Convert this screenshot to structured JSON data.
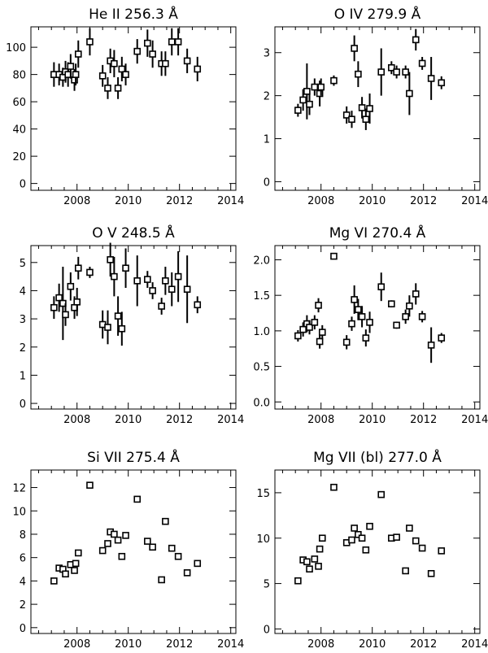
{
  "chart_data": [
    {
      "type": "scatter",
      "title": "He II 256.3 Å",
      "xlabel": "",
      "ylabel": "",
      "xlim": [
        2006.2,
        2014.2
      ],
      "ylim": [
        -5,
        115
      ],
      "xticks": [
        2008,
        2010,
        2012,
        2014
      ],
      "yticks": [
        0,
        20,
        40,
        60,
        80,
        100
      ],
      "points": [
        {
          "x": 2007.1,
          "y": 80,
          "err": 9
        },
        {
          "x": 2007.3,
          "y": 80,
          "err": 8
        },
        {
          "x": 2007.45,
          "y": 78,
          "err": 7
        },
        {
          "x": 2007.55,
          "y": 82,
          "err": 8
        },
        {
          "x": 2007.65,
          "y": 80,
          "err": 9
        },
        {
          "x": 2007.75,
          "y": 86,
          "err": 9
        },
        {
          "x": 2007.9,
          "y": 76,
          "err": 8
        },
        {
          "x": 2007.95,
          "y": 80,
          "err": 8
        },
        {
          "x": 2008.05,
          "y": 95,
          "err": 10
        },
        {
          "x": 2008.5,
          "y": 104,
          "err": 10
        },
        {
          "x": 2009.0,
          "y": 79,
          "err": 8
        },
        {
          "x": 2009.2,
          "y": 70,
          "err": 8
        },
        {
          "x": 2009.3,
          "y": 90,
          "err": 9
        },
        {
          "x": 2009.45,
          "y": 88,
          "err": 10
        },
        {
          "x": 2009.6,
          "y": 70,
          "err": 8
        },
        {
          "x": 2009.75,
          "y": 84,
          "err": 9
        },
        {
          "x": 2009.9,
          "y": 80,
          "err": 8
        },
        {
          "x": 2010.35,
          "y": 97,
          "err": 9
        },
        {
          "x": 2010.75,
          "y": 103,
          "err": 10
        },
        {
          "x": 2010.95,
          "y": 95,
          "err": 10
        },
        {
          "x": 2011.3,
          "y": 88,
          "err": 9
        },
        {
          "x": 2011.45,
          "y": 88,
          "err": 9
        },
        {
          "x": 2011.7,
          "y": 104,
          "err": 10
        },
        {
          "x": 2011.95,
          "y": 104,
          "err": 10
        },
        {
          "x": 2012.3,
          "y": 90,
          "err": 9
        },
        {
          "x": 2012.7,
          "y": 84,
          "err": 9
        }
      ]
    },
    {
      "type": "scatter",
      "title": "O IV 279.9 Å",
      "xlabel": "",
      "ylabel": "",
      "xlim": [
        2006.2,
        2014.2
      ],
      "ylim": [
        -0.2,
        3.6
      ],
      "xticks": [
        2008,
        2010,
        2012,
        2014
      ],
      "yticks": [
        0,
        1,
        2,
        3
      ],
      "points": [
        {
          "x": 2007.1,
          "y": 1.66,
          "err": 0.15
        },
        {
          "x": 2007.3,
          "y": 1.9,
          "err": 0.25
        },
        {
          "x": 2007.45,
          "y": 2.1,
          "err": 0.65
        },
        {
          "x": 2007.55,
          "y": 1.8,
          "err": 0.25
        },
        {
          "x": 2007.75,
          "y": 2.2,
          "err": 0.2
        },
        {
          "x": 2007.95,
          "y": 2.05,
          "err": 0.3
        },
        {
          "x": 2008.0,
          "y": 2.2,
          "err": 0.2
        },
        {
          "x": 2008.5,
          "y": 2.35,
          "err": 0.12
        },
        {
          "x": 2009.0,
          "y": 1.55,
          "err": 0.2
        },
        {
          "x": 2009.2,
          "y": 1.45,
          "err": 0.2
        },
        {
          "x": 2009.3,
          "y": 3.1,
          "err": 0.3
        },
        {
          "x": 2009.45,
          "y": 2.5,
          "err": 0.3
        },
        {
          "x": 2009.6,
          "y": 1.72,
          "err": 0.25
        },
        {
          "x": 2009.75,
          "y": 1.45,
          "err": 0.25
        },
        {
          "x": 2009.9,
          "y": 1.7,
          "err": 0.35
        },
        {
          "x": 2010.35,
          "y": 2.55,
          "err": 0.55
        },
        {
          "x": 2010.75,
          "y": 2.65,
          "err": 0.15
        },
        {
          "x": 2010.95,
          "y": 2.55,
          "err": 0.15
        },
        {
          "x": 2011.3,
          "y": 2.55,
          "err": 0.15
        },
        {
          "x": 2011.45,
          "y": 2.05,
          "err": 0.5
        },
        {
          "x": 2011.7,
          "y": 3.3,
          "err": 0.25
        },
        {
          "x": 2011.95,
          "y": 2.75,
          "err": 0.15
        },
        {
          "x": 2012.3,
          "y": 2.4,
          "err": 0.5
        },
        {
          "x": 2012.7,
          "y": 2.3,
          "err": 0.15
        }
      ]
    },
    {
      "type": "scatter",
      "title": "O V 248.5 Å",
      "xlabel": "",
      "ylabel": "",
      "xlim": [
        2006.2,
        2014.2
      ],
      "ylim": [
        -0.2,
        5.6
      ],
      "xticks": [
        2008,
        2010,
        2012,
        2014
      ],
      "yticks": [
        0,
        1,
        2,
        3,
        4,
        5
      ],
      "points": [
        {
          "x": 2007.1,
          "y": 3.4,
          "err": 0.4
        },
        {
          "x": 2007.3,
          "y": 3.75,
          "err": 0.5
        },
        {
          "x": 2007.45,
          "y": 3.55,
          "err": 1.3
        },
        {
          "x": 2007.55,
          "y": 3.15,
          "err": 0.4
        },
        {
          "x": 2007.75,
          "y": 4.15,
          "err": 0.5
        },
        {
          "x": 2007.9,
          "y": 3.4,
          "err": 0.4
        },
        {
          "x": 2008.0,
          "y": 3.6,
          "err": 0.5
        },
        {
          "x": 2008.05,
          "y": 4.8,
          "err": 0.4
        },
        {
          "x": 2008.5,
          "y": 4.65,
          "err": 0.2
        },
        {
          "x": 2009.0,
          "y": 2.8,
          "err": 0.5
        },
        {
          "x": 2009.2,
          "y": 2.7,
          "err": 0.6
        },
        {
          "x": 2009.3,
          "y": 5.1,
          "err": 0.6
        },
        {
          "x": 2009.45,
          "y": 4.5,
          "err": 0.7
        },
        {
          "x": 2009.6,
          "y": 3.1,
          "err": 0.7
        },
        {
          "x": 2009.75,
          "y": 2.65,
          "err": 0.6
        },
        {
          "x": 2009.9,
          "y": 4.8,
          "err": 0.7
        },
        {
          "x": 2010.35,
          "y": 4.35,
          "err": 0.9
        },
        {
          "x": 2010.75,
          "y": 4.4,
          "err": 0.3
        },
        {
          "x": 2010.95,
          "y": 4.0,
          "err": 0.3
        },
        {
          "x": 2011.3,
          "y": 3.45,
          "err": 0.3
        },
        {
          "x": 2011.45,
          "y": 4.35,
          "err": 0.5
        },
        {
          "x": 2011.7,
          "y": 4.05,
          "err": 0.6
        },
        {
          "x": 2011.95,
          "y": 4.5,
          "err": 0.9
        },
        {
          "x": 2012.3,
          "y": 4.05,
          "err": 1.2
        },
        {
          "x": 2012.7,
          "y": 3.5,
          "err": 0.3
        }
      ]
    },
    {
      "type": "scatter",
      "title": "Mg VI 270.4 Å",
      "xlabel": "",
      "ylabel": "",
      "xlim": [
        2006.2,
        2014.2
      ],
      "ylim": [
        -0.1,
        2.2
      ],
      "xticks": [
        2008,
        2010,
        2012,
        2014
      ],
      "yticks": [
        0.0,
        0.5,
        1.0,
        1.5,
        2.0
      ],
      "ytick_labels": [
        "0.0",
        "0.5",
        "1.0",
        "1.5",
        "2.0"
      ],
      "points": [
        {
          "x": 2007.1,
          "y": 0.93,
          "err": 0.08
        },
        {
          "x": 2007.3,
          "y": 1.02,
          "err": 0.1
        },
        {
          "x": 2007.45,
          "y": 1.1,
          "err": 0.12
        },
        {
          "x": 2007.55,
          "y": 1.05,
          "err": 0.1
        },
        {
          "x": 2007.75,
          "y": 1.12,
          "err": 0.1
        },
        {
          "x": 2007.9,
          "y": 1.36,
          "err": 0.1
        },
        {
          "x": 2007.95,
          "y": 0.85,
          "err": 0.1
        },
        {
          "x": 2008.05,
          "y": 0.98,
          "err": 0.1
        },
        {
          "x": 2008.5,
          "y": 2.05,
          "err": 0.04
        },
        {
          "x": 2009.0,
          "y": 0.84,
          "err": 0.1
        },
        {
          "x": 2009.2,
          "y": 1.1,
          "err": 0.1
        },
        {
          "x": 2009.3,
          "y": 1.44,
          "err": 0.2
        },
        {
          "x": 2009.45,
          "y": 1.3,
          "err": 0.15
        },
        {
          "x": 2009.6,
          "y": 1.2,
          "err": 0.15
        },
        {
          "x": 2009.75,
          "y": 0.9,
          "err": 0.12
        },
        {
          "x": 2009.9,
          "y": 1.12,
          "err": 0.15
        },
        {
          "x": 2010.35,
          "y": 1.62,
          "err": 0.2
        },
        {
          "x": 2010.75,
          "y": 1.38,
          "err": 0.05
        },
        {
          "x": 2010.95,
          "y": 1.08,
          "err": 0.05
        },
        {
          "x": 2011.3,
          "y": 1.2,
          "err": 0.1
        },
        {
          "x": 2011.45,
          "y": 1.35,
          "err": 0.15
        },
        {
          "x": 2011.7,
          "y": 1.52,
          "err": 0.15
        },
        {
          "x": 2011.95,
          "y": 1.2,
          "err": 0.08
        },
        {
          "x": 2012.3,
          "y": 0.8,
          "err": 0.25
        },
        {
          "x": 2012.7,
          "y": 0.9,
          "err": 0.07
        }
      ]
    },
    {
      "type": "scatter",
      "title": "Si VII 275.4 Å",
      "xlabel": "",
      "ylabel": "",
      "xlim": [
        2006.2,
        2014.2
      ],
      "ylim": [
        -0.5,
        13.5
      ],
      "xticks": [
        2008,
        2010,
        2012,
        2014
      ],
      "yticks": [
        0,
        2,
        4,
        6,
        8,
        10,
        12
      ],
      "points": [
        {
          "x": 2007.1,
          "y": 4.0,
          "err": 0
        },
        {
          "x": 2007.3,
          "y": 5.1,
          "err": 0
        },
        {
          "x": 2007.45,
          "y": 5.0,
          "err": 0
        },
        {
          "x": 2007.55,
          "y": 4.6,
          "err": 0
        },
        {
          "x": 2007.75,
          "y": 5.4,
          "err": 0
        },
        {
          "x": 2007.9,
          "y": 4.9,
          "err": 0
        },
        {
          "x": 2007.95,
          "y": 5.5,
          "err": 0
        },
        {
          "x": 2008.05,
          "y": 6.4,
          "err": 0
        },
        {
          "x": 2008.5,
          "y": 12.2,
          "err": 0
        },
        {
          "x": 2009.0,
          "y": 6.6,
          "err": 0
        },
        {
          "x": 2009.2,
          "y": 7.2,
          "err": 0
        },
        {
          "x": 2009.3,
          "y": 8.2,
          "err": 0
        },
        {
          "x": 2009.45,
          "y": 8.0,
          "err": 0
        },
        {
          "x": 2009.6,
          "y": 7.5,
          "err": 0
        },
        {
          "x": 2009.75,
          "y": 6.1,
          "err": 0
        },
        {
          "x": 2009.9,
          "y": 7.9,
          "err": 0
        },
        {
          "x": 2010.35,
          "y": 11.0,
          "err": 0
        },
        {
          "x": 2010.75,
          "y": 7.4,
          "err": 0
        },
        {
          "x": 2010.95,
          "y": 6.9,
          "err": 0
        },
        {
          "x": 2011.3,
          "y": 4.1,
          "err": 0
        },
        {
          "x": 2011.45,
          "y": 9.1,
          "err": 0
        },
        {
          "x": 2011.7,
          "y": 6.8,
          "err": 0
        },
        {
          "x": 2011.95,
          "y": 6.1,
          "err": 0
        },
        {
          "x": 2012.3,
          "y": 4.7,
          "err": 0
        },
        {
          "x": 2012.7,
          "y": 5.5,
          "err": 0
        }
      ]
    },
    {
      "type": "scatter",
      "title": "Mg VII (bl) 277.0 Å",
      "xlabel": "",
      "ylabel": "",
      "xlim": [
        2006.2,
        2014.2
      ],
      "ylim": [
        -0.5,
        17.5
      ],
      "xticks": [
        2008,
        2010,
        2012,
        2014
      ],
      "yticks": [
        0,
        5,
        10,
        15
      ],
      "points": [
        {
          "x": 2007.1,
          "y": 5.3,
          "err": 0
        },
        {
          "x": 2007.3,
          "y": 7.6,
          "err": 0
        },
        {
          "x": 2007.45,
          "y": 7.4,
          "err": 0
        },
        {
          "x": 2007.55,
          "y": 6.6,
          "err": 0
        },
        {
          "x": 2007.75,
          "y": 7.7,
          "err": 0
        },
        {
          "x": 2007.9,
          "y": 6.9,
          "err": 0
        },
        {
          "x": 2007.95,
          "y": 8.8,
          "err": 0
        },
        {
          "x": 2008.05,
          "y": 10.0,
          "err": 0
        },
        {
          "x": 2008.5,
          "y": 15.6,
          "err": 0
        },
        {
          "x": 2009.0,
          "y": 9.5,
          "err": 0
        },
        {
          "x": 2009.2,
          "y": 9.8,
          "err": 0
        },
        {
          "x": 2009.3,
          "y": 11.1,
          "err": 0
        },
        {
          "x": 2009.45,
          "y": 10.4,
          "err": 0
        },
        {
          "x": 2009.6,
          "y": 10.0,
          "err": 0
        },
        {
          "x": 2009.75,
          "y": 8.7,
          "err": 0
        },
        {
          "x": 2009.9,
          "y": 11.3,
          "err": 0
        },
        {
          "x": 2010.35,
          "y": 14.8,
          "err": 0
        },
        {
          "x": 2010.75,
          "y": 10.0,
          "err": 0
        },
        {
          "x": 2010.95,
          "y": 10.1,
          "err": 0
        },
        {
          "x": 2011.3,
          "y": 6.4,
          "err": 0
        },
        {
          "x": 2011.45,
          "y": 11.1,
          "err": 0
        },
        {
          "x": 2011.7,
          "y": 9.7,
          "err": 0
        },
        {
          "x": 2011.95,
          "y": 8.9,
          "err": 0
        },
        {
          "x": 2012.3,
          "y": 6.1,
          "err": 0
        },
        {
          "x": 2012.7,
          "y": 8.6,
          "err": 0
        }
      ]
    }
  ]
}
